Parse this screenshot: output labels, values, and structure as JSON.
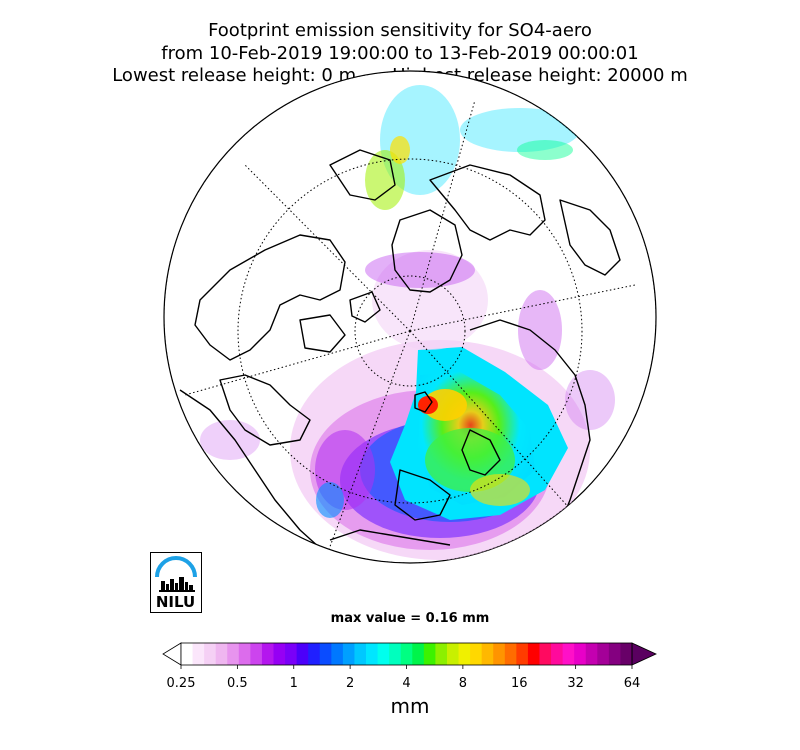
{
  "title": {
    "line1": "Footprint emission sensitivity for SO4-aero",
    "line2": "from 10-Feb-2019 19:00:00 to 13-Feb-2019 00:00:01",
    "line3_left": "Lowest release height: 0 m",
    "line3_right": "Highest release height: 20000 m"
  },
  "logo": {
    "text": "NILU",
    "icon": "nilu-skyline-logo"
  },
  "max_value": "max value = 0.16 mm",
  "colorbar": {
    "ticks": [
      "0.25",
      "0.5",
      "1",
      "2",
      "4",
      "8",
      "16",
      "32",
      "64"
    ],
    "unit": "mm",
    "colors": [
      "#ffffff",
      "#fbe6fb",
      "#f5d0f5",
      "#efb6f0",
      "#e794ee",
      "#dc6cec",
      "#cc44ee",
      "#b416ee",
      "#9600f4",
      "#7a00f8",
      "#4c00fa",
      "#2020ff",
      "#0a4cff",
      "#0078ff",
      "#00a0ff",
      "#00c8ff",
      "#00e6ff",
      "#00ffee",
      "#00ffbe",
      "#00ff82",
      "#00f44a",
      "#3cf200",
      "#8cf000",
      "#c8f000",
      "#f0f000",
      "#ffd800",
      "#ffb800",
      "#ff9400",
      "#ff6c00",
      "#ff3c00",
      "#ff0000",
      "#ff0a60",
      "#ff0a9c",
      "#ff10c8",
      "#e800c8",
      "#c400b0",
      "#a40098",
      "#840080",
      "#680068"
    ]
  }
}
